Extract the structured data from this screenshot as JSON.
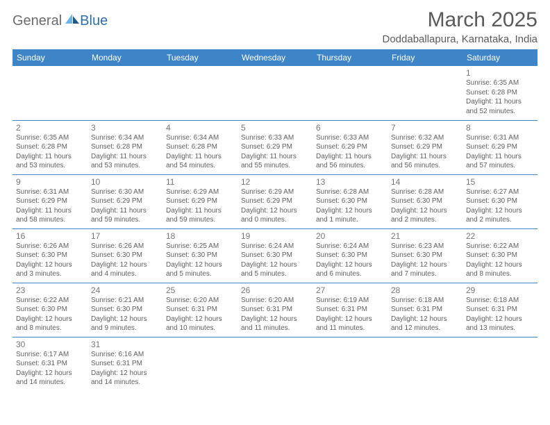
{
  "logo": {
    "text_general": "General",
    "text_blue": "Blue",
    "icon_color_light": "#6fb4e8",
    "icon_color_dark": "#1f5a8a"
  },
  "header": {
    "month_title": "March 2025",
    "location": "Doddaballapura, Karnataka, India"
  },
  "colors": {
    "header_bg": "#3d85c6",
    "header_text": "#ffffff",
    "border": "#3d85c6",
    "daynum": "#777777",
    "body_text": "#606060",
    "title_text": "#5a5a5a"
  },
  "day_headers": [
    "Sunday",
    "Monday",
    "Tuesday",
    "Wednesday",
    "Thursday",
    "Friday",
    "Saturday"
  ],
  "weeks": [
    [
      null,
      null,
      null,
      null,
      null,
      null,
      {
        "n": "1",
        "sunrise": "Sunrise: 6:35 AM",
        "sunset": "Sunset: 6:28 PM",
        "daylight": "Daylight: 11 hours and 52 minutes."
      }
    ],
    [
      {
        "n": "2",
        "sunrise": "Sunrise: 6:35 AM",
        "sunset": "Sunset: 6:28 PM",
        "daylight": "Daylight: 11 hours and 53 minutes."
      },
      {
        "n": "3",
        "sunrise": "Sunrise: 6:34 AM",
        "sunset": "Sunset: 6:28 PM",
        "daylight": "Daylight: 11 hours and 53 minutes."
      },
      {
        "n": "4",
        "sunrise": "Sunrise: 6:34 AM",
        "sunset": "Sunset: 6:28 PM",
        "daylight": "Daylight: 11 hours and 54 minutes."
      },
      {
        "n": "5",
        "sunrise": "Sunrise: 6:33 AM",
        "sunset": "Sunset: 6:29 PM",
        "daylight": "Daylight: 11 hours and 55 minutes."
      },
      {
        "n": "6",
        "sunrise": "Sunrise: 6:33 AM",
        "sunset": "Sunset: 6:29 PM",
        "daylight": "Daylight: 11 hours and 56 minutes."
      },
      {
        "n": "7",
        "sunrise": "Sunrise: 6:32 AM",
        "sunset": "Sunset: 6:29 PM",
        "daylight": "Daylight: 11 hours and 56 minutes."
      },
      {
        "n": "8",
        "sunrise": "Sunrise: 6:31 AM",
        "sunset": "Sunset: 6:29 PM",
        "daylight": "Daylight: 11 hours and 57 minutes."
      }
    ],
    [
      {
        "n": "9",
        "sunrise": "Sunrise: 6:31 AM",
        "sunset": "Sunset: 6:29 PM",
        "daylight": "Daylight: 11 hours and 58 minutes."
      },
      {
        "n": "10",
        "sunrise": "Sunrise: 6:30 AM",
        "sunset": "Sunset: 6:29 PM",
        "daylight": "Daylight: 11 hours and 59 minutes."
      },
      {
        "n": "11",
        "sunrise": "Sunrise: 6:29 AM",
        "sunset": "Sunset: 6:29 PM",
        "daylight": "Daylight: 11 hours and 59 minutes."
      },
      {
        "n": "12",
        "sunrise": "Sunrise: 6:29 AM",
        "sunset": "Sunset: 6:29 PM",
        "daylight": "Daylight: 12 hours and 0 minutes."
      },
      {
        "n": "13",
        "sunrise": "Sunrise: 6:28 AM",
        "sunset": "Sunset: 6:30 PM",
        "daylight": "Daylight: 12 hours and 1 minute."
      },
      {
        "n": "14",
        "sunrise": "Sunrise: 6:28 AM",
        "sunset": "Sunset: 6:30 PM",
        "daylight": "Daylight: 12 hours and 2 minutes."
      },
      {
        "n": "15",
        "sunrise": "Sunrise: 6:27 AM",
        "sunset": "Sunset: 6:30 PM",
        "daylight": "Daylight: 12 hours and 2 minutes."
      }
    ],
    [
      {
        "n": "16",
        "sunrise": "Sunrise: 6:26 AM",
        "sunset": "Sunset: 6:30 PM",
        "daylight": "Daylight: 12 hours and 3 minutes."
      },
      {
        "n": "17",
        "sunrise": "Sunrise: 6:26 AM",
        "sunset": "Sunset: 6:30 PM",
        "daylight": "Daylight: 12 hours and 4 minutes."
      },
      {
        "n": "18",
        "sunrise": "Sunrise: 6:25 AM",
        "sunset": "Sunset: 6:30 PM",
        "daylight": "Daylight: 12 hours and 5 minutes."
      },
      {
        "n": "19",
        "sunrise": "Sunrise: 6:24 AM",
        "sunset": "Sunset: 6:30 PM",
        "daylight": "Daylight: 12 hours and 5 minutes."
      },
      {
        "n": "20",
        "sunrise": "Sunrise: 6:24 AM",
        "sunset": "Sunset: 6:30 PM",
        "daylight": "Daylight: 12 hours and 6 minutes."
      },
      {
        "n": "21",
        "sunrise": "Sunrise: 6:23 AM",
        "sunset": "Sunset: 6:30 PM",
        "daylight": "Daylight: 12 hours and 7 minutes."
      },
      {
        "n": "22",
        "sunrise": "Sunrise: 6:22 AM",
        "sunset": "Sunset: 6:30 PM",
        "daylight": "Daylight: 12 hours and 8 minutes."
      }
    ],
    [
      {
        "n": "23",
        "sunrise": "Sunrise: 6:22 AM",
        "sunset": "Sunset: 6:30 PM",
        "daylight": "Daylight: 12 hours and 8 minutes."
      },
      {
        "n": "24",
        "sunrise": "Sunrise: 6:21 AM",
        "sunset": "Sunset: 6:30 PM",
        "daylight": "Daylight: 12 hours and 9 minutes."
      },
      {
        "n": "25",
        "sunrise": "Sunrise: 6:20 AM",
        "sunset": "Sunset: 6:31 PM",
        "daylight": "Daylight: 12 hours and 10 minutes."
      },
      {
        "n": "26",
        "sunrise": "Sunrise: 6:20 AM",
        "sunset": "Sunset: 6:31 PM",
        "daylight": "Daylight: 12 hours and 11 minutes."
      },
      {
        "n": "27",
        "sunrise": "Sunrise: 6:19 AM",
        "sunset": "Sunset: 6:31 PM",
        "daylight": "Daylight: 12 hours and 11 minutes."
      },
      {
        "n": "28",
        "sunrise": "Sunrise: 6:18 AM",
        "sunset": "Sunset: 6:31 PM",
        "daylight": "Daylight: 12 hours and 12 minutes."
      },
      {
        "n": "29",
        "sunrise": "Sunrise: 6:18 AM",
        "sunset": "Sunset: 6:31 PM",
        "daylight": "Daylight: 12 hours and 13 minutes."
      }
    ],
    [
      {
        "n": "30",
        "sunrise": "Sunrise: 6:17 AM",
        "sunset": "Sunset: 6:31 PM",
        "daylight": "Daylight: 12 hours and 14 minutes."
      },
      {
        "n": "31",
        "sunrise": "Sunrise: 6:16 AM",
        "sunset": "Sunset: 6:31 PM",
        "daylight": "Daylight: 12 hours and 14 minutes."
      },
      null,
      null,
      null,
      null,
      null
    ]
  ]
}
